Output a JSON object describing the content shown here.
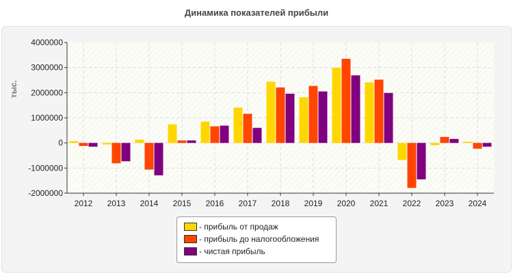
{
  "chart_data": {
    "type": "bar",
    "title": "Динамика показателей прибыли",
    "ylabel": "тыс.",
    "xlabel": "",
    "ylim": [
      -2000000,
      4000000
    ],
    "yticks": [
      -2000000,
      -1000000,
      0,
      1000000,
      2000000,
      3000000,
      4000000
    ],
    "grid": true,
    "legend_position": "bottom",
    "categories": [
      "2012",
      "2013",
      "2014",
      "2015",
      "2016",
      "2017",
      "2018",
      "2019",
      "2020",
      "2021",
      "2022",
      "2023",
      "2024"
    ],
    "series": [
      {
        "name": "- прибыль от продаж",
        "color": "#ffd700",
        "values": [
          70000,
          -60000,
          130000,
          740000,
          850000,
          1410000,
          2440000,
          1820000,
          2990000,
          2410000,
          -680000,
          -90000,
          50000
        ]
      },
      {
        "name": "- прибыль до налогообложения",
        "color": "#ff4500",
        "values": [
          -120000,
          -810000,
          -1060000,
          100000,
          660000,
          1160000,
          2210000,
          2270000,
          3350000,
          2520000,
          -1790000,
          240000,
          -230000
        ]
      },
      {
        "name": "- чистая прибыль",
        "color": "#800080",
        "values": [
          -150000,
          -730000,
          -1290000,
          100000,
          690000,
          600000,
          1960000,
          2050000,
          2690000,
          1990000,
          -1450000,
          160000,
          -150000
        ]
      }
    ]
  }
}
